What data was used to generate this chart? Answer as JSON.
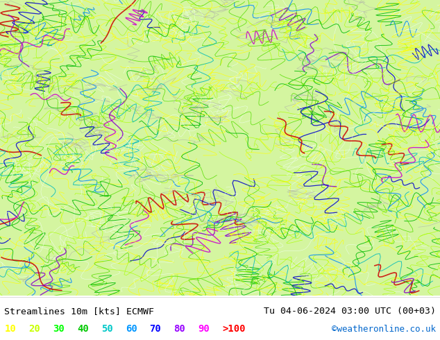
{
  "title_left": "Streamlines 10m [kts] ECMWF",
  "title_right": "Tu 04-06-2024 03:00 UTC (00+03)",
  "credit": "©weatheronline.co.uk",
  "legend_values": [
    "10",
    "20",
    "30",
    "40",
    "50",
    "60",
    "70",
    "80",
    "90",
    ">100"
  ],
  "legend_colors": [
    "#ffff00",
    "#c8ff00",
    "#00ff00",
    "#00c800",
    "#00c8c8",
    "#0096ff",
    "#0000ff",
    "#9600ff",
    "#ff00ff",
    "#ff0000"
  ],
  "background_color": "#ffffff",
  "map_bg_color": "#d4f5a0",
  "fig_width": 6.34,
  "fig_height": 4.9,
  "dpi": 100
}
